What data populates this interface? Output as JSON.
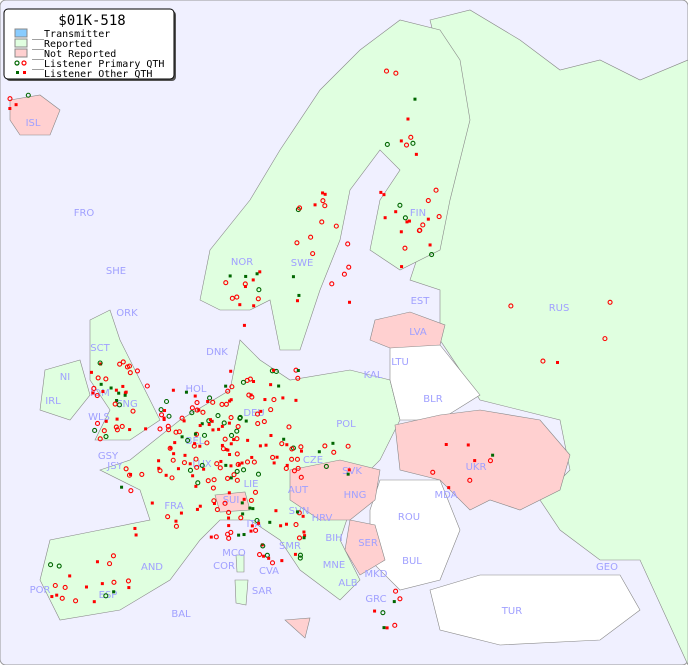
{
  "legend": {
    "title": "$01K-518",
    "items": [
      {
        "label": "__Transmitter",
        "color": "#88ccff"
      },
      {
        "label": "__Reported",
        "color": "#e0ffe0"
      },
      {
        "label": "__Not Reported",
        "color": "#ffd0d0"
      },
      {
        "label": "__Listener Primary QTH",
        "marker": "open-circle",
        "colors": [
          "#006600",
          "#ff0000"
        ]
      },
      {
        "label": "__Listener Other QTH",
        "marker": "small-square",
        "colors": [
          "#006600",
          "#ff0000"
        ]
      }
    ]
  },
  "colors": {
    "sea": "#f0f0ff",
    "reported": "#e0ffe0",
    "not_reported": "#ffd0d0",
    "no_data": "#ffffff",
    "label": "#a0a0ff"
  },
  "countries": {
    "ISL": "ISL",
    "FRO": "FRO",
    "SHE": "SHE",
    "ORK": "ORK",
    "NOR": "NOR",
    "SWE": "SWE",
    "FIN": "FIN",
    "RUS": "RUS",
    "EST": "EST",
    "LVA": "LVA",
    "LTU": "LTU",
    "KAL": "KAL",
    "BLR": "BLR",
    "DNK": "DNK",
    "HOL": "HOL",
    "DEU": "DEU",
    "POL": "POL",
    "IRL": "IRL",
    "NI": "NI",
    "SCT": "SCT",
    "IOM": "IOM",
    "WLS": "WLS",
    "ENG": "ENG",
    "BEL": "BEL",
    "LUX": "LUX",
    "GSY": "GSY",
    "JSY": "JSY",
    "FRA": "FRA",
    "CZE": "CZE",
    "SVK": "SVK",
    "UKR": "UKR",
    "MDA": "MDA",
    "AUT": "AUT",
    "HNG": "HNG",
    "SUI": "SUI",
    "LIE": "LIE",
    "SVN": "SVN",
    "HRV": "HRV",
    "ITA": "ITA",
    "ROU": "ROU",
    "BIH": "BIH",
    "SER": "SER",
    "MCO": "MCO",
    "COR": "COR",
    "SMR": "SMR",
    "CVA": "CVA",
    "MNE": "MNE",
    "BUL": "BUL",
    "AND": "AND",
    "POR": "POR",
    "ESP": "ESP",
    "BAL": "BAL",
    "SAR": "SAR",
    "ALB": "ALB",
    "MKD": "MKD",
    "GRC": "GRC",
    "TUR": "TUR",
    "GEO": "GEO"
  }
}
